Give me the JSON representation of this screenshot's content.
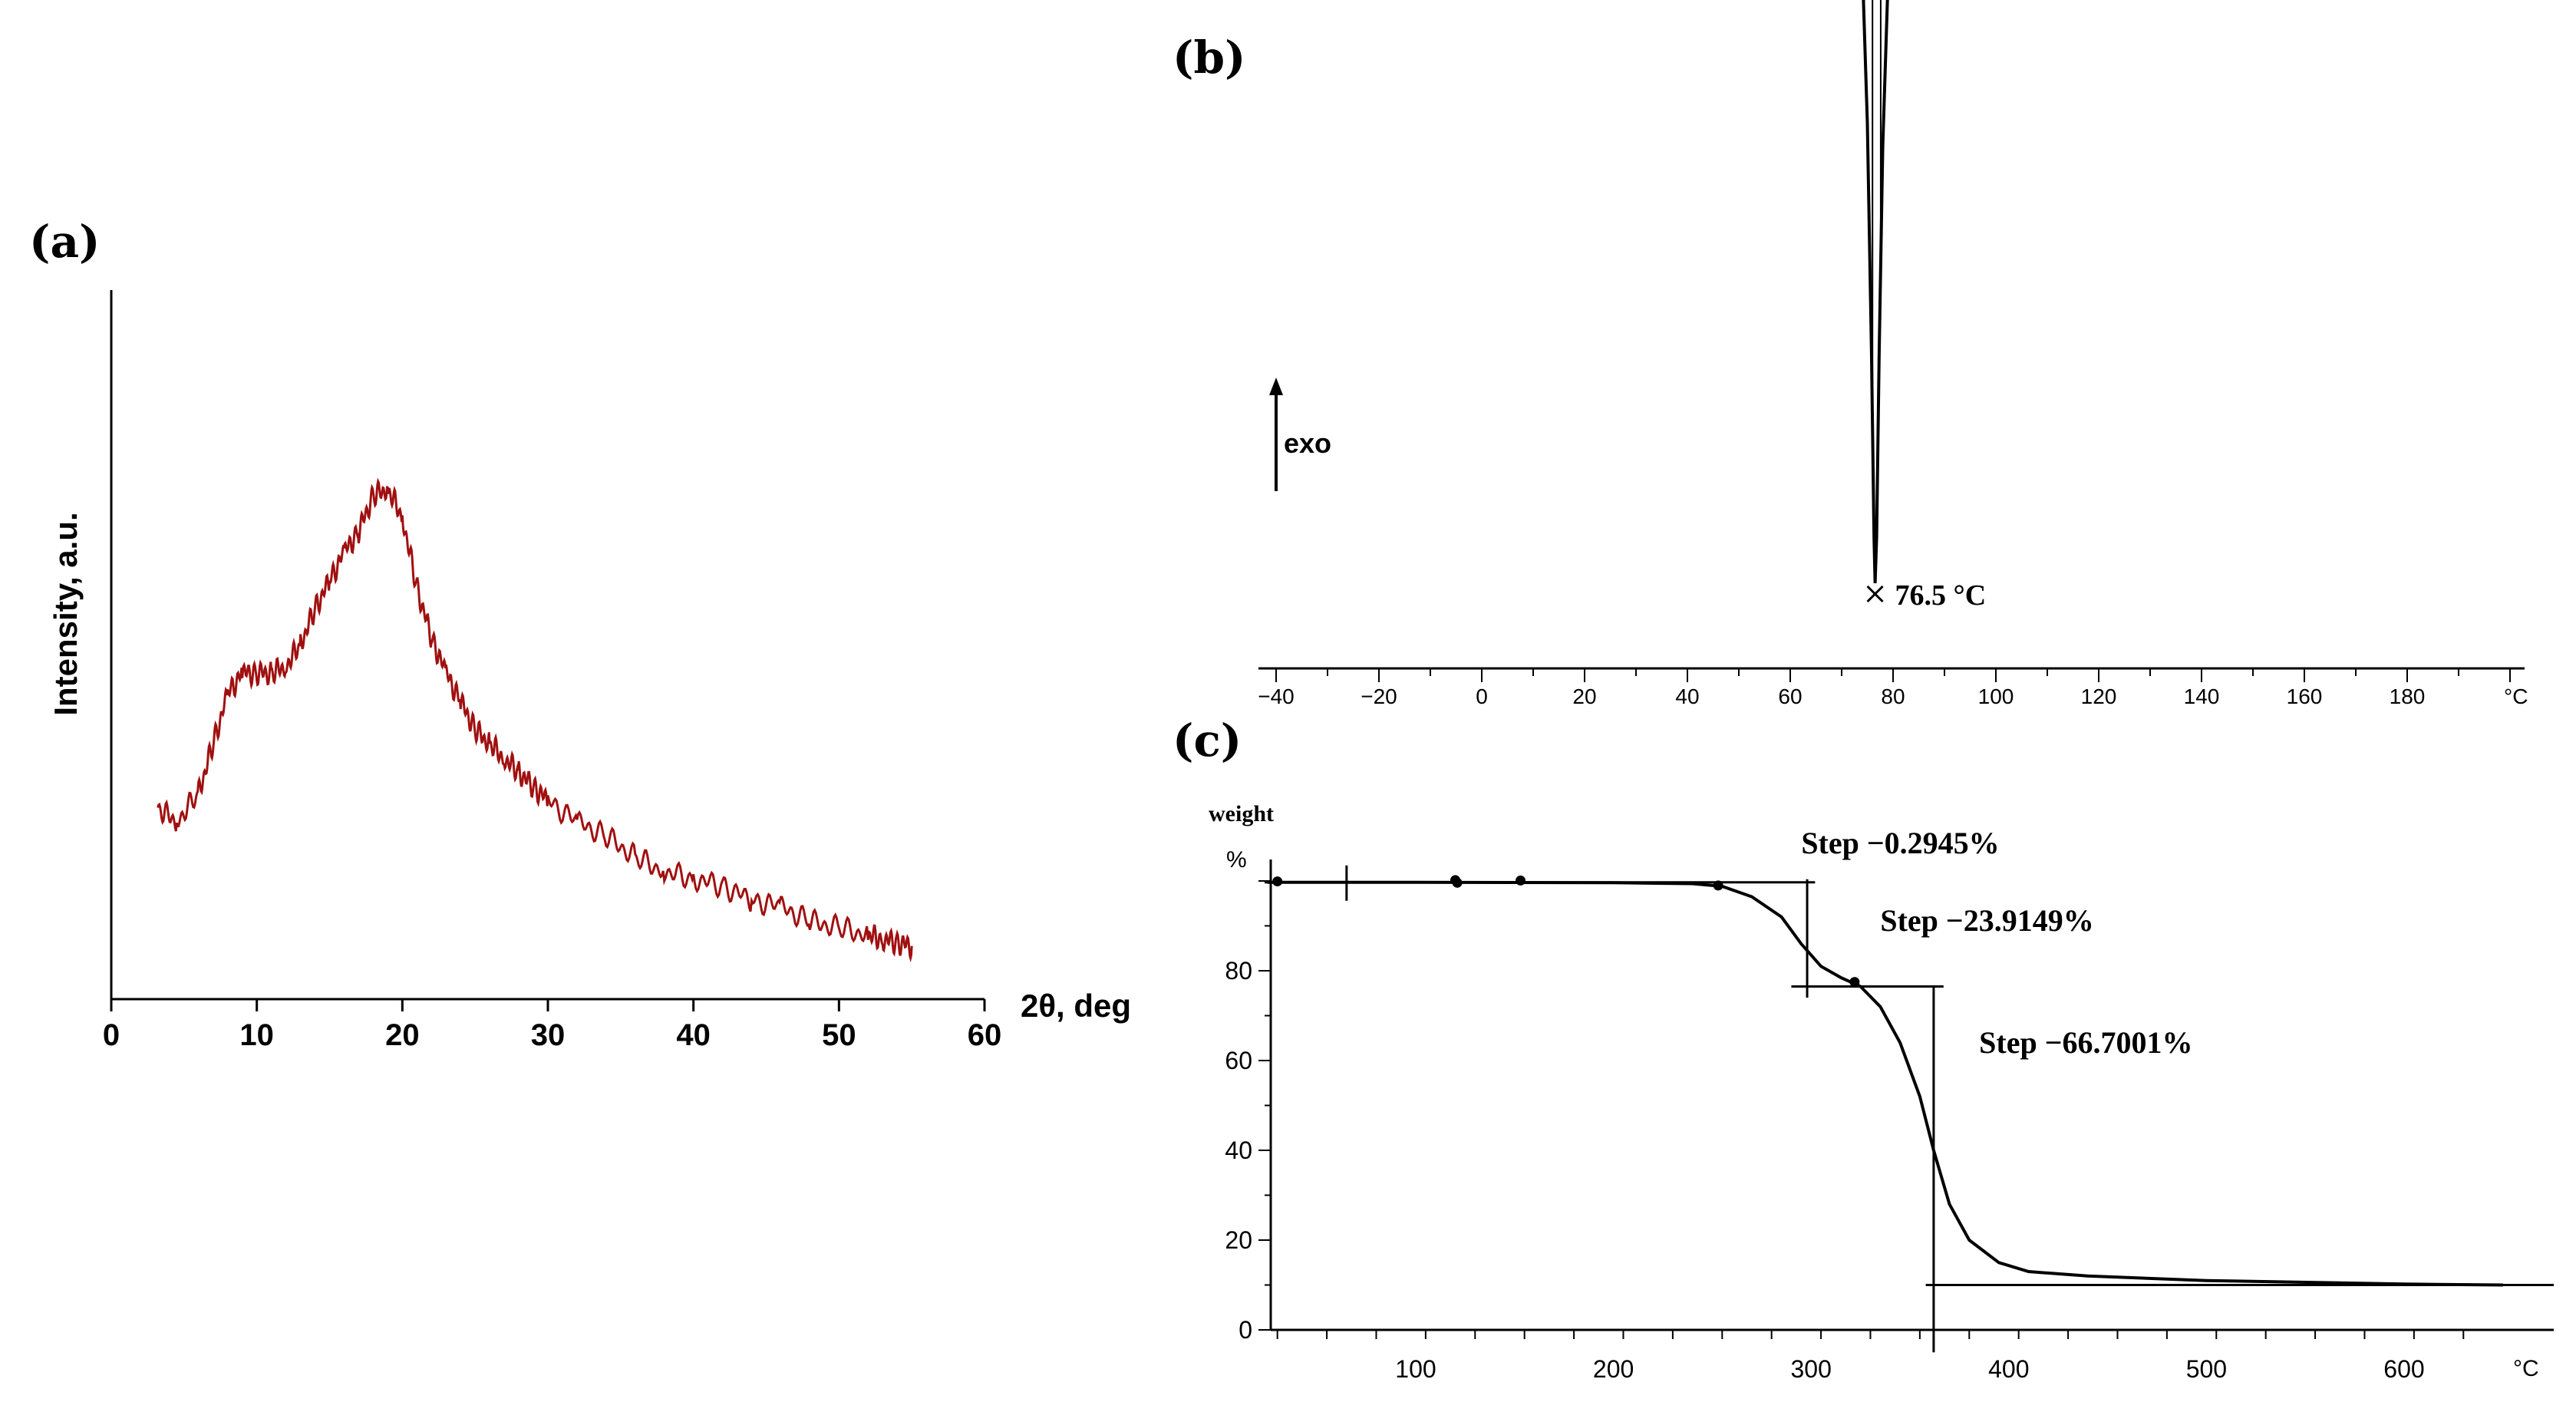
{
  "chart_data": [
    {
      "panel": "(a)",
      "type": "line",
      "title": "",
      "xlabel": "2θ, deg",
      "ylabel": "Intensity, a.u.",
      "xlim": [
        0,
        60
      ],
      "ylim": [
        0,
        1
      ],
      "x_ticks": [
        0,
        10,
        20,
        30,
        40,
        50,
        60
      ],
      "grid": false,
      "series": [
        {
          "name": "XRD pattern",
          "color": "#a01010",
          "x": [
            3.2,
            4.5,
            6,
            7,
            8,
            9,
            10,
            11,
            12,
            13,
            14,
            15,
            16,
            17,
            18,
            19,
            20,
            21,
            22,
            23,
            24,
            25,
            26,
            27,
            28,
            29,
            30,
            32,
            34,
            36,
            38,
            40,
            42,
            44,
            46,
            48,
            50,
            52,
            53,
            54,
            55
          ],
          "y": [
            0.27,
            0.25,
            0.29,
            0.36,
            0.43,
            0.46,
            0.46,
            0.46,
            0.47,
            0.5,
            0.55,
            0.59,
            0.63,
            0.66,
            0.71,
            0.72,
            0.68,
            0.58,
            0.51,
            0.46,
            0.42,
            0.38,
            0.36,
            0.34,
            0.32,
            0.3,
            0.28,
            0.25,
            0.23,
            0.2,
            0.18,
            0.17,
            0.16,
            0.14,
            0.13,
            0.11,
            0.1,
            0.09,
            0.085,
            0.08,
            0.075
          ]
        }
      ]
    },
    {
      "panel": "(b)",
      "type": "line",
      "title": "",
      "xlabel": "°C",
      "ylabel": "exo",
      "xlim": [
        -40,
        200
      ],
      "x_ticks": [
        -40,
        -20,
        0,
        20,
        40,
        60,
        80,
        100,
        120,
        140,
        160,
        180
      ],
      "x_unit_label": "°C",
      "annotations": [
        {
          "text": "76.5 °C",
          "x": 76.5
        }
      ],
      "series": [
        {
          "name": "DSC curve",
          "color": "#000000",
          "x": [
            -43,
            -20,
            0,
            20,
            40,
            58,
            65,
            68,
            70,
            72,
            73,
            74,
            75,
            75.8,
            76.3,
            76.5,
            76.8,
            77.3,
            78,
            79,
            80,
            82,
            86,
            95,
            107,
            120,
            160,
            200
          ],
          "y": [
            100,
            96,
            92,
            87,
            81,
            74,
            71,
            69,
            66,
            58,
            45,
            25,
            -10,
            -60,
            -100,
            -110,
            -100,
            -60,
            -15,
            20,
            42,
            44,
            43,
            43,
            42,
            40,
            35,
            30
          ]
        }
      ]
    },
    {
      "panel": "(c)",
      "type": "line",
      "title": "",
      "xlabel": "°C",
      "ylabel_line1": "weight",
      "ylabel_line2": "%",
      "xlim": [
        25,
        650
      ],
      "ylim": [
        0,
        100
      ],
      "x_ticks": [
        100,
        200,
        300,
        400,
        500,
        600
      ],
      "x_unit_label": "°C",
      "y_ticks": [
        0,
        20,
        40,
        60,
        80
      ],
      "annotations": [
        {
          "text": "Step −0.2945%",
          "x": 300
        },
        {
          "text": "Step −23.9149%",
          "x": 330
        },
        {
          "text": "Step −66.7001%",
          "x": 365
        }
      ],
      "series": [
        {
          "name": "TGA curve",
          "color": "#000000",
          "x": [
            25,
            100,
            200,
            240,
            255,
            270,
            285,
            295,
            305,
            315,
            325,
            335,
            345,
            355,
            362,
            370,
            380,
            395,
            410,
            440,
            500,
            600,
            650
          ],
          "y": [
            99.7,
            99.7,
            99.6,
            99.4,
            98.8,
            96.5,
            92,
            86,
            81,
            78.5,
            76.5,
            72,
            64,
            52,
            40,
            28,
            20,
            15,
            13,
            12,
            11,
            10.2,
            10
          ]
        }
      ]
    }
  ]
}
